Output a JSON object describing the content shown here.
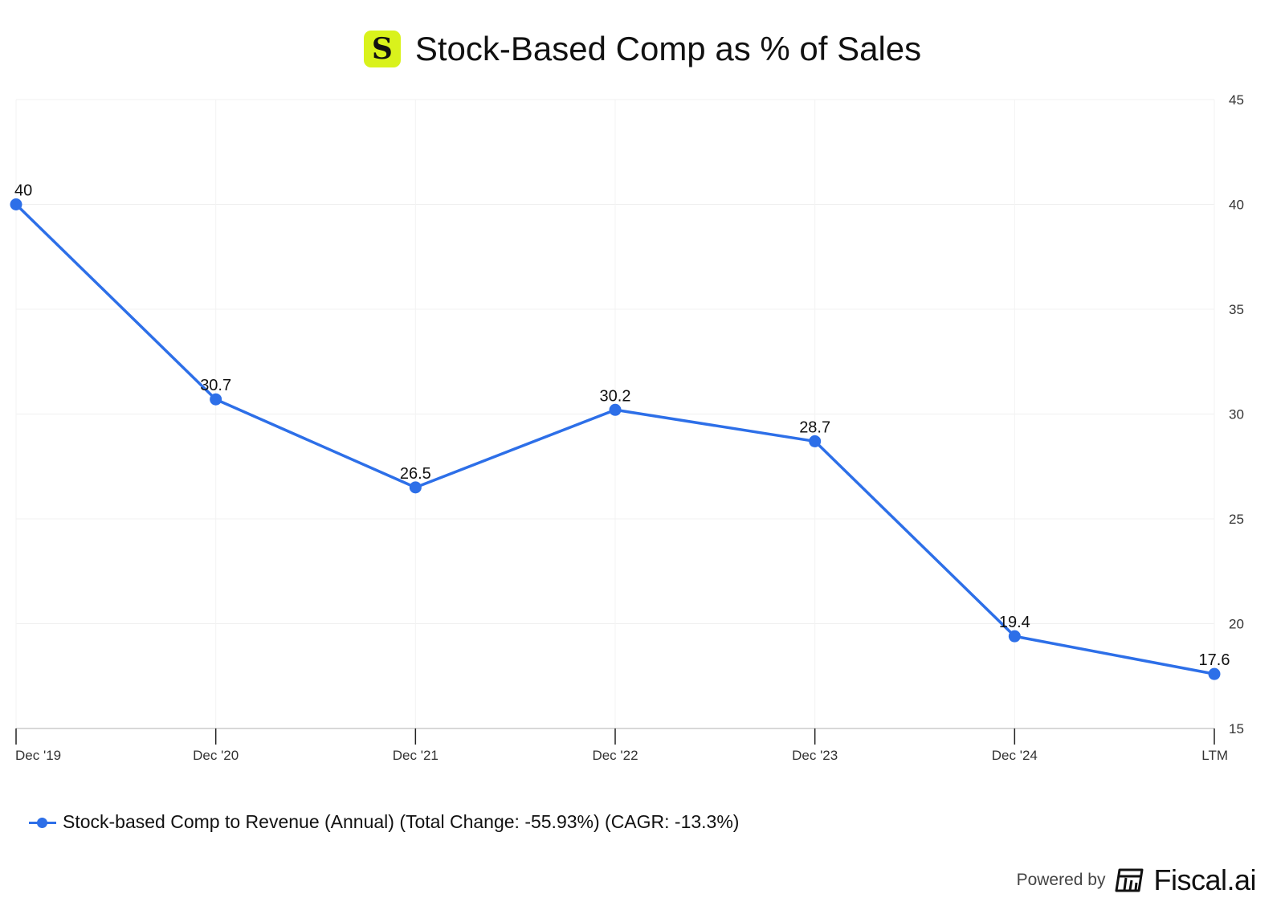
{
  "header": {
    "logo_letter": "S",
    "title": "Stock-Based Comp as % of Sales"
  },
  "chart_data": {
    "type": "line",
    "title": "Stock-Based Comp as % of Sales",
    "categories": [
      "Dec '19",
      "Dec '20",
      "Dec '21",
      "Dec '22",
      "Dec '23",
      "Dec '24",
      "LTM"
    ],
    "series": [
      {
        "name": "Stock-based Comp to Revenue (Annual) (Total Change: -55.93%) (CAGR: -13.3%)",
        "values": [
          40,
          30.7,
          26.5,
          30.2,
          28.7,
          19.4,
          17.6
        ],
        "color": "#2d6fe8"
      }
    ],
    "ylim": [
      15,
      45
    ],
    "yticks": [
      15,
      20,
      25,
      30,
      35,
      40,
      45
    ],
    "y_axis_side": "right",
    "grid": true,
    "data_labels": true,
    "legend_position": "bottom-left"
  },
  "legend": {
    "label": "Stock-based Comp to Revenue (Annual) (Total Change: -55.93%) (CAGR: -13.3%)"
  },
  "footer": {
    "powered_by": "Powered by",
    "brand": "Fiscal.ai"
  },
  "colors": {
    "accent": "#2d6fe8",
    "logo_bg": "#d9f21c"
  }
}
